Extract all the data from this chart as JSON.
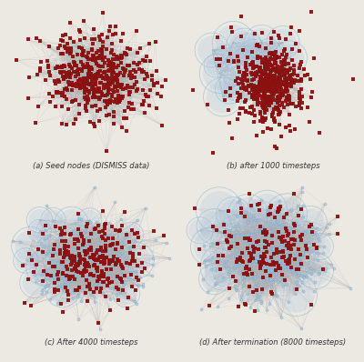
{
  "bg_color": "#ece9e3",
  "panel_bg": "#ece9e3",
  "captions": [
    "(a) Seed nodes (DISMISS data)",
    "(b) after 1000 timesteps",
    "(c) After 4000 timesteps",
    "(d) After termination (8000 timesteps)"
  ],
  "caption_fontsize": 6.0,
  "edge_color": "#b0b0b0",
  "seed_color": "#8b1010",
  "blue_small": "#a8c4de",
  "blue_medium": "#6a9ec5",
  "blue_dark": "#2060a0",
  "blue_outline": "#7aaed0"
}
